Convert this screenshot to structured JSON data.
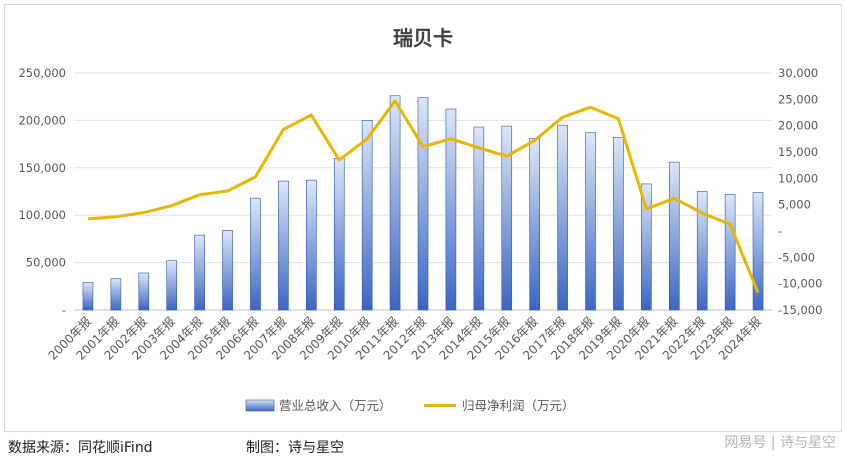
{
  "chart_data": {
    "type": "bar+line",
    "title": "瑞贝卡",
    "categories": [
      "2000年报",
      "2001年报",
      "2002年报",
      "2003年报",
      "2004年报",
      "2005年报",
      "2006年报",
      "2007年报",
      "2008年报",
      "2009年报",
      "2010年报",
      "2011年报",
      "2012年报",
      "2013年报",
      "2014年报",
      "2015年报",
      "2016年报",
      "2017年报",
      "2018年报",
      "2019年报",
      "2020年报",
      "2021年报",
      "2022年报",
      "2023年报",
      "2024年报"
    ],
    "series": [
      {
        "name": "营业总收入（万元）",
        "type": "bar",
        "axis": "left",
        "color": "#4472c4",
        "values": [
          29000,
          33000,
          39000,
          52000,
          79000,
          84000,
          118000,
          136000,
          137000,
          160000,
          200000,
          226000,
          224000,
          212000,
          193000,
          194000,
          181000,
          195000,
          187000,
          182000,
          133000,
          156000,
          125000,
          122000,
          124000
        ]
      },
      {
        "name": "归母净利润（万元）",
        "type": "line",
        "axis": "right",
        "color": "#e9b500",
        "values": [
          2300,
          2700,
          3500,
          4800,
          6900,
          7600,
          10300,
          19300,
          22000,
          13500,
          17500,
          24700,
          16000,
          17500,
          15800,
          14200,
          17200,
          21600,
          23500,
          21300,
          4200,
          6200,
          3400,
          1300,
          -11700
        ]
      }
    ],
    "y_left": {
      "min": 0,
      "max": 250000,
      "ticks": [
        "-",
        "50,000",
        "100,000",
        "150,000",
        "200,000",
        "250,000"
      ]
    },
    "y_right": {
      "min": -15000,
      "max": 30000,
      "ticks": [
        "-15,000",
        "-10,000",
        "-5,000",
        "-",
        "5,000",
        "10,000",
        "15,000",
        "20,000",
        "25,000",
        "30,000"
      ]
    },
    "grid": true,
    "legend": "bottom"
  },
  "footer": {
    "source": "数据来源：同花顺iFind",
    "maker": "制图：诗与星空",
    "watermark": "网易号 | 诗与星空"
  }
}
